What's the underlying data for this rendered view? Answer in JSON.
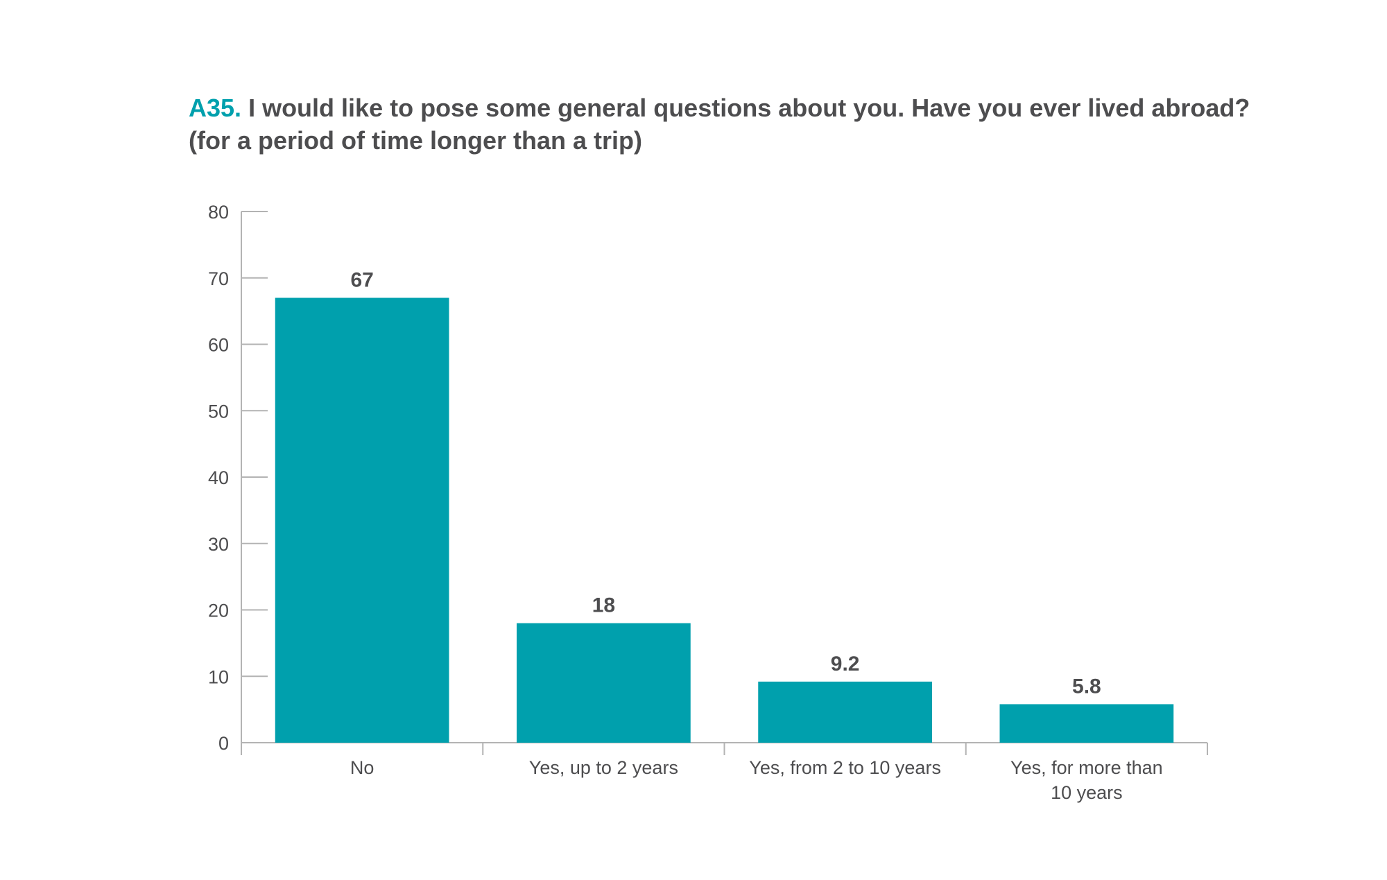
{
  "chart_data": {
    "type": "bar",
    "title_id": "A35.",
    "title_line1": "I would like to pose some general questions about you. Have you ever lived abroad?",
    "title_line2": "(for a period of time longer than a trip)",
    "categories": [
      [
        "No"
      ],
      [
        "Yes, up to 2 years"
      ],
      [
        "Yes, from 2 to 10 years"
      ],
      [
        "Yes, for more than",
        "10 years"
      ]
    ],
    "values": [
      67,
      18,
      9.2,
      5.8
    ],
    "value_labels": [
      "67",
      "18",
      "9.2",
      "5.8"
    ],
    "yticks": [
      0,
      10,
      20,
      30,
      40,
      50,
      60,
      70,
      80
    ],
    "ylim": [
      0,
      80
    ],
    "xlabel": "",
    "ylabel": "",
    "grid": false,
    "bar_color": "#00a0ad",
    "accent_color": "#00a0ad",
    "text_color": "#4d4d4f",
    "axis_color": "#b3b3b3"
  }
}
